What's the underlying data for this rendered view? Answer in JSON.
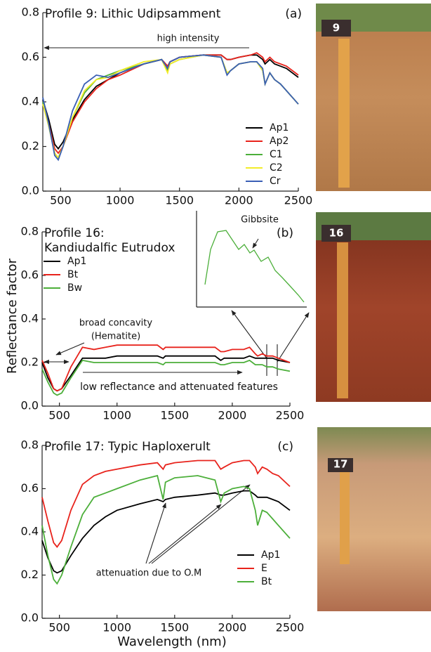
{
  "chart_data": [
    {
      "type": "line",
      "title": [
        "Profile 9: Lithic Udipsamment"
      ],
      "panel": "(a)",
      "photo_label": "9",
      "x": [
        350,
        400,
        450,
        480,
        520,
        600,
        700,
        800,
        900,
        1000,
        1200,
        1350,
        1400,
        1420,
        1500,
        1700,
        1850,
        1900,
        1930,
        2000,
        2100,
        2150,
        2200,
        2220,
        2260,
        2300,
        2350,
        2400,
        2500
      ],
      "series": [
        {
          "name": "Ap1",
          "color": "#000000",
          "values": [
            0.41,
            0.32,
            0.21,
            0.19,
            0.22,
            0.32,
            0.41,
            0.47,
            0.5,
            0.53,
            0.57,
            0.59,
            0.56,
            0.58,
            0.6,
            0.61,
            0.61,
            0.59,
            0.59,
            0.6,
            0.61,
            0.61,
            0.59,
            0.57,
            0.59,
            0.57,
            0.56,
            0.55,
            0.51
          ]
        },
        {
          "name": "Ap2",
          "color": "#e8231c",
          "values": [
            0.4,
            0.3,
            0.19,
            0.17,
            0.2,
            0.31,
            0.4,
            0.46,
            0.5,
            0.52,
            0.57,
            0.59,
            0.56,
            0.58,
            0.6,
            0.61,
            0.61,
            0.59,
            0.59,
            0.6,
            0.61,
            0.62,
            0.6,
            0.58,
            0.6,
            0.58,
            0.57,
            0.56,
            0.52
          ]
        },
        {
          "name": "C1",
          "color": "#4caf3a",
          "values": [
            0.4,
            0.29,
            0.17,
            0.15,
            0.2,
            0.33,
            0.44,
            0.5,
            0.52,
            0.54,
            0.57,
            0.59,
            0.54,
            0.57,
            0.59,
            0.61,
            0.6,
            0.53,
            0.54,
            0.57,
            0.58,
            0.58,
            0.54,
            0.48,
            0.53,
            0.5,
            0.48,
            0.45,
            0.39
          ]
        },
        {
          "name": "C2",
          "color": "#f2ec2a",
          "values": [
            0.39,
            0.29,
            0.17,
            0.15,
            0.2,
            0.33,
            0.45,
            0.5,
            0.51,
            0.54,
            0.58,
            0.59,
            0.53,
            0.57,
            0.59,
            0.61,
            0.6,
            0.53,
            0.54,
            0.57,
            0.58,
            0.58,
            0.54,
            0.48,
            0.53,
            0.5,
            0.48,
            0.45,
            0.39
          ]
        },
        {
          "name": "Cr",
          "color": "#3a5fb5",
          "values": [
            0.42,
            0.3,
            0.16,
            0.14,
            0.2,
            0.36,
            0.48,
            0.52,
            0.51,
            0.53,
            0.57,
            0.59,
            0.55,
            0.58,
            0.6,
            0.61,
            0.6,
            0.52,
            0.54,
            0.57,
            0.58,
            0.58,
            0.55,
            0.48,
            0.53,
            0.5,
            0.48,
            0.45,
            0.39
          ]
        }
      ],
      "xlim": [
        350,
        2500
      ],
      "ylim": [
        0,
        0.8
      ],
      "xticks": [
        500,
        1000,
        1500,
        2000,
        2500
      ],
      "yticks": [
        {
          "value": 0,
          "label": "0.0"
        },
        0.2,
        0.4,
        0.6,
        0.8
      ],
      "legend": "lower right",
      "annotations": [
        "high intensity"
      ]
    },
    {
      "type": "line",
      "title": [
        "Profile 16:",
        "Kandiudalfic Eutrudox"
      ],
      "panel": "(b)",
      "photo_label": "16",
      "ylabel": "Reflectance factor",
      "x": [
        350,
        400,
        450,
        480,
        520,
        600,
        700,
        800,
        900,
        1000,
        1200,
        1350,
        1400,
        1420,
        1500,
        1700,
        1850,
        1900,
        1930,
        2000,
        2100,
        2150,
        2200,
        2220,
        2260,
        2300,
        2350,
        2400,
        2500
      ],
      "series": [
        {
          "name": "Ap1",
          "color": "#000000",
          "values": [
            0.2,
            0.13,
            0.08,
            0.07,
            0.08,
            0.14,
            0.22,
            0.22,
            0.22,
            0.23,
            0.23,
            0.23,
            0.22,
            0.23,
            0.23,
            0.23,
            0.23,
            0.21,
            0.22,
            0.22,
            0.22,
            0.23,
            0.22,
            0.22,
            0.22,
            0.22,
            0.22,
            0.21,
            0.2
          ]
        },
        {
          "name": "Bt",
          "color": "#e8231c",
          "values": [
            0.21,
            0.15,
            0.08,
            0.07,
            0.08,
            0.18,
            0.27,
            0.26,
            0.27,
            0.28,
            0.28,
            0.28,
            0.26,
            0.27,
            0.27,
            0.27,
            0.27,
            0.25,
            0.25,
            0.26,
            0.26,
            0.27,
            0.24,
            0.23,
            0.24,
            0.23,
            0.23,
            0.22,
            0.2
          ]
        },
        {
          "name": "Bw",
          "color": "#4caf3a",
          "values": [
            0.17,
            0.11,
            0.06,
            0.05,
            0.06,
            0.13,
            0.21,
            0.2,
            0.2,
            0.2,
            0.2,
            0.2,
            0.19,
            0.2,
            0.2,
            0.2,
            0.2,
            0.19,
            0.19,
            0.2,
            0.2,
            0.21,
            0.19,
            0.19,
            0.19,
            0.18,
            0.18,
            0.17,
            0.16
          ]
        }
      ],
      "xlim": [
        350,
        2500
      ],
      "ylim": [
        0,
        0.8
      ],
      "xticks": [
        500,
        1000,
        1500,
        2000,
        2500
      ],
      "yticks": [
        {
          "value": 0,
          "label": "0.0"
        },
        0.2,
        0.4,
        0.6,
        0.8
      ],
      "legend": "upper left",
      "annotations": [
        "Gibbsite",
        "broad concavity",
        "(Hematite)",
        "low reflectance and attenuated features"
      ]
    },
    {
      "type": "line",
      "title": [
        "Profile 17: Typic Haploxerult"
      ],
      "panel": "(c)",
      "photo_label": "17",
      "xlabel": "Wavelength (nm)",
      "x": [
        350,
        400,
        450,
        480,
        520,
        600,
        700,
        800,
        900,
        1000,
        1200,
        1350,
        1400,
        1420,
        1500,
        1700,
        1850,
        1900,
        1930,
        2000,
        2100,
        2150,
        2200,
        2220,
        2260,
        2300,
        2350,
        2400,
        2500
      ],
      "series": [
        {
          "name": "Ap1",
          "color": "#000000",
          "values": [
            0.36,
            0.28,
            0.22,
            0.21,
            0.22,
            0.29,
            0.37,
            0.43,
            0.47,
            0.5,
            0.53,
            0.55,
            0.54,
            0.55,
            0.56,
            0.57,
            0.58,
            0.57,
            0.57,
            0.58,
            0.59,
            0.59,
            0.57,
            0.56,
            0.56,
            0.56,
            0.55,
            0.54,
            0.5
          ]
        },
        {
          "name": "E",
          "color": "#e8231c",
          "values": [
            0.56,
            0.45,
            0.35,
            0.33,
            0.36,
            0.5,
            0.62,
            0.66,
            0.68,
            0.69,
            0.71,
            0.72,
            0.69,
            0.71,
            0.72,
            0.73,
            0.73,
            0.69,
            0.7,
            0.72,
            0.73,
            0.73,
            0.7,
            0.67,
            0.7,
            0.69,
            0.67,
            0.66,
            0.61
          ]
        },
        {
          "name": "Bt",
          "color": "#4caf3a",
          "values": [
            0.43,
            0.29,
            0.18,
            0.16,
            0.2,
            0.33,
            0.48,
            0.56,
            0.58,
            0.6,
            0.64,
            0.66,
            0.55,
            0.63,
            0.65,
            0.66,
            0.64,
            0.54,
            0.58,
            0.6,
            0.61,
            0.6,
            0.5,
            0.43,
            0.5,
            0.49,
            0.46,
            0.43,
            0.37
          ]
        }
      ],
      "xlim": [
        350,
        2500
      ],
      "ylim": [
        0,
        0.8
      ],
      "xticks": [
        500,
        1000,
        1500,
        2000,
        2500
      ],
      "yticks": [
        {
          "value": 0,
          "label": "0.0"
        },
        0.2,
        0.4,
        0.6,
        0.8
      ],
      "legend": "lower right",
      "annotations": [
        "attenuation due to O.M"
      ]
    }
  ]
}
